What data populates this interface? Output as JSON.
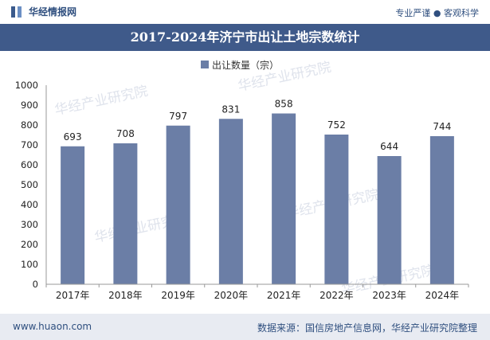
{
  "header": {
    "brand": "华经情报网",
    "tagline": "专业严谨 ● 客观科学"
  },
  "footer": {
    "website": "www.huaon.com",
    "source": "数据来源：国信房地产信息网，华经产业研究院整理"
  },
  "watermark": "华经产业研究院",
  "colors": {
    "bar": "#6b7ea6",
    "title_bg": "#3f5a8a",
    "footer_bg": "#e8ebf2"
  },
  "chart_data": {
    "type": "bar",
    "title": "2017-2024年济宁市出让土地宗数统计",
    "legend": "出让数量（宗）",
    "legend_position": "top-center",
    "categories": [
      "2017年",
      "2018年",
      "2019年",
      "2020年",
      "2021年",
      "2022年",
      "2023年",
      "2024年"
    ],
    "values": [
      693,
      708,
      797,
      831,
      858,
      752,
      644,
      744
    ],
    "ylim": [
      0,
      1000
    ],
    "yticks": [
      "0",
      "100",
      "200",
      "300",
      "400",
      "500",
      "600",
      "700",
      "800",
      "900",
      "1000"
    ],
    "data_labels": [
      "693",
      "708",
      "797",
      "831",
      "858",
      "752",
      "644",
      "744"
    ]
  }
}
